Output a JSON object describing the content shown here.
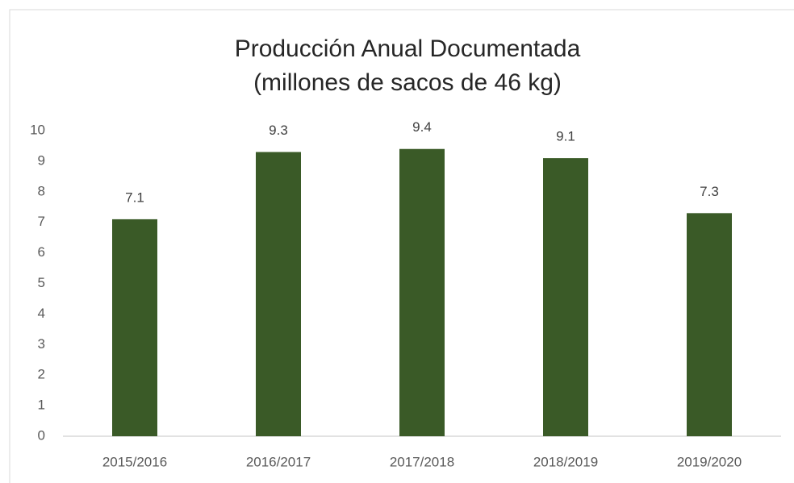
{
  "chart_data": {
    "type": "bar",
    "title": "Producción Anual Documentada",
    "subtitle": "(millones de sacos de 46 kg)",
    "categories": [
      "2015/2016",
      "2016/2017",
      "2017/2018",
      "2018/2019",
      "2019/2020"
    ],
    "values": [
      7.1,
      9.3,
      9.4,
      9.1,
      7.3
    ],
    "color": "#3a5a27",
    "ylim": [
      0,
      10
    ],
    "yticks": [
      0,
      1,
      2,
      3,
      4,
      5,
      6,
      7,
      8,
      9,
      10
    ],
    "grid": false,
    "data_labels": true
  }
}
